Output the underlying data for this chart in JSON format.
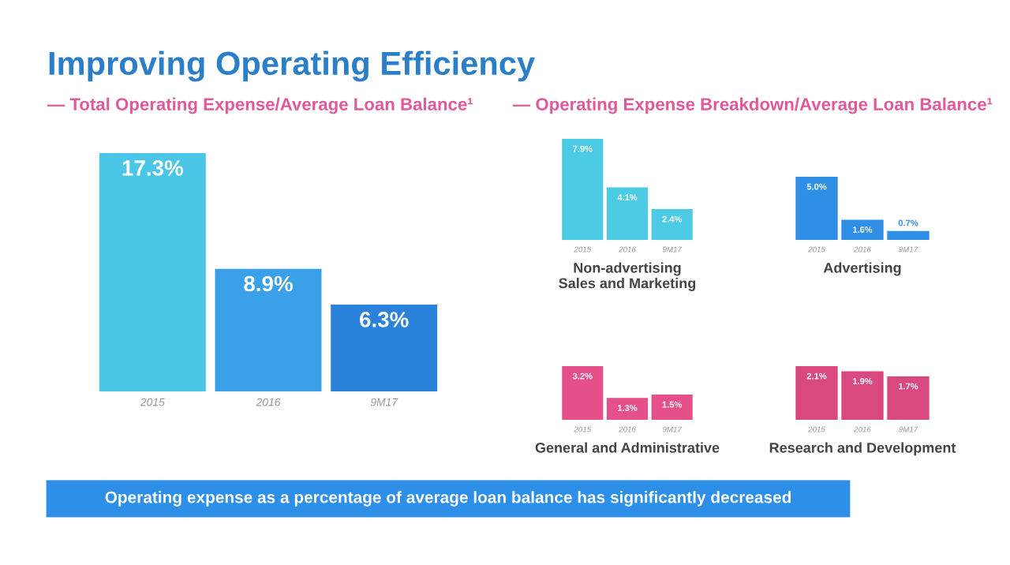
{
  "chart_data": [
    {
      "type": "other",
      "title": "Improving Operating Efficiency",
      "annotations": [
        "— Operating Expense Breakdown/Average Loan Balance¹",
        "Operating expense as a percentage of average loan balance has significantly decreased"
      ]
    },
    {
      "type": "bar",
      "title": "— Total Operating Expense/Average Loan Balance¹",
      "categories": [
        "2015",
        "2016",
        "9M17"
      ],
      "values": [
        17.3,
        8.9,
        6.3
      ],
      "value_labels": [
        "17.3%",
        "8.9%",
        "6.3%"
      ],
      "colors": [
        "#4cc6e6",
        "#3aa0ea",
        "#2a82da"
      ],
      "grid": false,
      "legend": false
    },
    {
      "type": "bar",
      "xlabel": "Non-advertising\nSales and Marketing",
      "categories": [
        "2015",
        "2016",
        "9M17"
      ],
      "values": [
        7.9,
        4.1,
        2.4
      ],
      "value_labels": [
        "7.9%",
        "4.1%",
        "2.4%"
      ],
      "color": "#4ccbe4",
      "grid": false,
      "legend": false
    },
    {
      "type": "bar",
      "xlabel": "Advertising",
      "categories": [
        "2015",
        "2016",
        "9M17"
      ],
      "values": [
        5.0,
        1.6,
        0.7
      ],
      "value_labels": [
        "5.0%",
        "1.6%",
        "0.7%"
      ],
      "color": "#2f8fe6",
      "grid": false,
      "legend": false
    },
    {
      "type": "bar",
      "xlabel": "General and Administrative",
      "categories": [
        "2015",
        "2016",
        "9M17"
      ],
      "values": [
        3.2,
        1.3,
        1.5
      ],
      "value_labels": [
        "3.2%",
        "1.3%",
        "1.5%"
      ],
      "color": "#e5508a",
      "grid": false,
      "legend": false
    },
    {
      "type": "bar",
      "xlabel": "Research and Development",
      "categories": [
        "2015",
        "2016",
        "9M17"
      ],
      "values": [
        2.1,
        1.9,
        1.7
      ],
      "value_labels": [
        "2.1%",
        "1.9%",
        "1.7%"
      ],
      "color": "#d9487e",
      "grid": false,
      "legend": false
    }
  ]
}
